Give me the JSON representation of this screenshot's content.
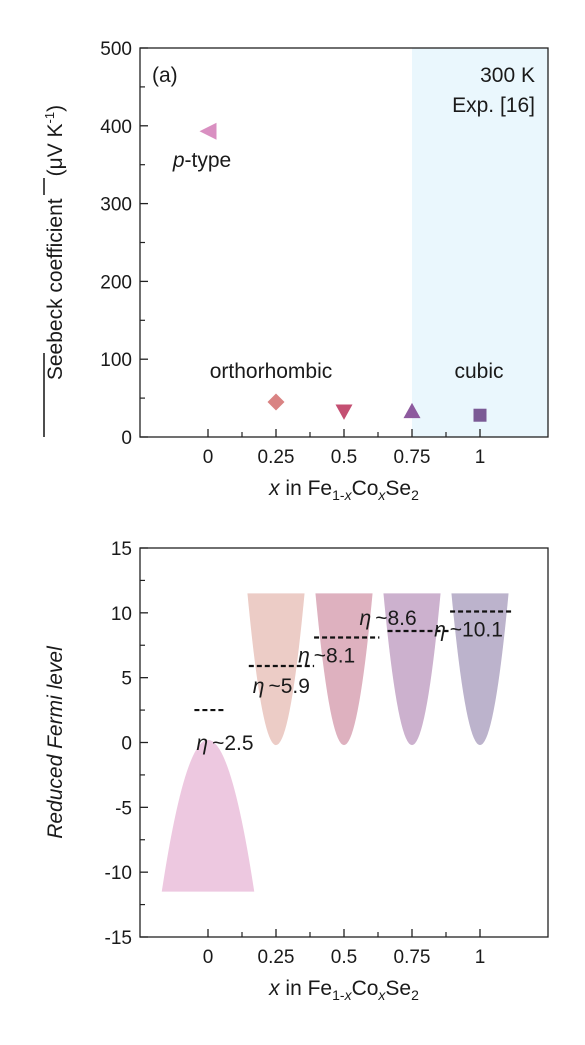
{
  "chart_data": [
    {
      "type": "scatter",
      "panel_label": "(a)",
      "ylabel_parts": [
        "Seebeck coefficient",
        "(μV K",
        "-1",
        ")"
      ],
      "xlabel": {
        "var": "x",
        "mid": " in Fe",
        "sub1": "1-",
        "subx": "x",
        "mid2": "Co",
        "x2": "x",
        "tail": "Se",
        "sub2": "2"
      },
      "x_tick_labels": [
        "0",
        "0.25",
        "0.5",
        "0.75",
        "1"
      ],
      "x_ticks": [
        0,
        0.25,
        0.5,
        0.75,
        1
      ],
      "xlim": [
        -0.25,
        1.25
      ],
      "y_ticks": [
        0,
        100,
        200,
        300,
        400,
        500
      ],
      "y_tick_labels": [
        "0",
        "100",
        "200",
        "300",
        "400",
        "500"
      ],
      "ylim": [
        0,
        500
      ],
      "shaded_region": {
        "x_from": 0.75,
        "x_to": 1.25,
        "color": "#eaf7fd"
      },
      "annotations": {
        "temperature": "300 K",
        "reference": "Exp. [16]",
        "ptype_italic": "p",
        "ptype_rest": "-type",
        "orthorhombic": "orthorhombic",
        "cubic": "cubic"
      },
      "points": [
        {
          "x": 0,
          "y": 393,
          "marker": "triangle-left",
          "color": "#d98fc1"
        },
        {
          "x": 0.25,
          "y": 45,
          "marker": "diamond",
          "color": "#d98383"
        },
        {
          "x": 0.5,
          "y": 33,
          "marker": "triangle-down",
          "color": "#c44f72"
        },
        {
          "x": 0.75,
          "y": 33,
          "marker": "triangle-up",
          "color": "#8d5a9e"
        },
        {
          "x": 1,
          "y": 28,
          "marker": "square",
          "color": "#7b5a95"
        }
      ]
    },
    {
      "type": "area",
      "ylabel": "Reduced Fermi level",
      "xlabel": {
        "var": "x",
        "mid": " in Fe",
        "sub1": "1-",
        "subx": "x",
        "mid2": "Co",
        "x2": "x",
        "tail": "Se",
        "sub2": "2"
      },
      "x_tick_labels": [
        "0",
        "0.25",
        "0.5",
        "0.75",
        "1"
      ],
      "x_ticks": [
        0,
        0.25,
        0.5,
        0.75,
        1
      ],
      "xlim": [
        -0.25,
        1.25
      ],
      "y_ticks": [
        -15,
        -10,
        -5,
        0,
        5,
        10,
        15
      ],
      "y_tick_labels": [
        "-15",
        "-10",
        "-5",
        "0",
        "5",
        "10",
        "15"
      ],
      "ylim": [
        -15,
        15
      ],
      "eta_symbol": "η",
      "bands": [
        {
          "x": 0,
          "orientation": "down",
          "apex": 0.2,
          "end": -11.5,
          "half_width": 0.17,
          "color": "#edc8e0",
          "eta": 2.5,
          "eta_label": "~2.5",
          "dash_from": -0.05,
          "dash_to": 0.06
        },
        {
          "x": 0.25,
          "orientation": "up",
          "apex": -0.2,
          "end": 11.5,
          "half_width": 0.105,
          "color": "#ecccc6",
          "eta": 5.9,
          "eta_label": "~5.9",
          "dash_from": 0.15,
          "dash_to": 0.39
        },
        {
          "x": 0.5,
          "orientation": "up",
          "apex": -0.2,
          "end": 11.5,
          "half_width": 0.105,
          "color": "#deb1bf",
          "eta": 8.1,
          "eta_label": "~8.1",
          "dash_from": 0.39,
          "dash_to": 0.63
        },
        {
          "x": 0.75,
          "orientation": "up",
          "apex": -0.2,
          "end": 11.5,
          "half_width": 0.105,
          "color": "#ccb1ce",
          "eta": 8.6,
          "eta_label": "~8.6",
          "dash_from": 0.66,
          "dash_to": 0.89
        },
        {
          "x": 1,
          "orientation": "up",
          "apex": -0.2,
          "end": 11.5,
          "half_width": 0.105,
          "color": "#bcb3cc",
          "eta": 10.1,
          "eta_label": "~10.1",
          "dash_from": 0.89,
          "dash_to": 1.12
        }
      ]
    }
  ]
}
